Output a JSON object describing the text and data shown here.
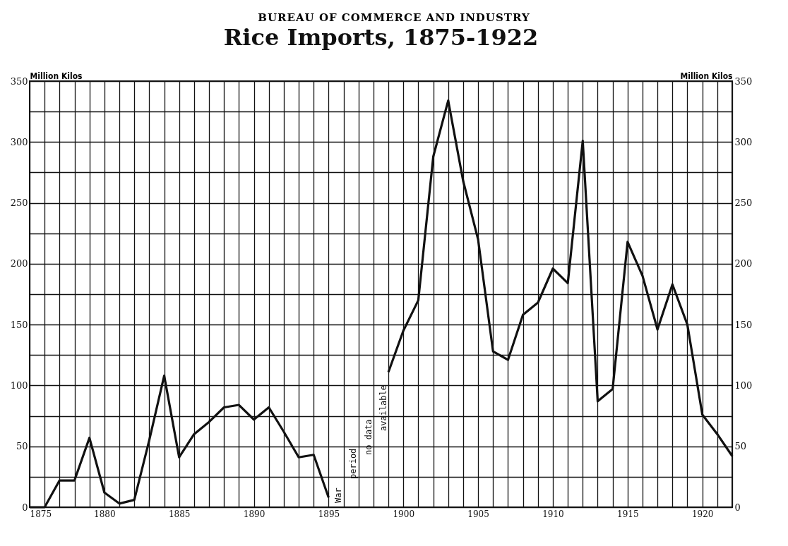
{
  "chart_data": {
    "type": "line",
    "title": "Rice Imports, 1875-1922",
    "subtitle": "BUREAU OF COMMERCE AND INDUSTRY",
    "ylabel": "Million Kilos",
    "y2label": "Million Kilos",
    "x": [
      1875,
      1876,
      1877,
      1878,
      1879,
      1880,
      1881,
      1882,
      1883,
      1884,
      1885,
      1886,
      1887,
      1888,
      1889,
      1890,
      1891,
      1892,
      1893,
      1894,
      1895,
      1896,
      1897,
      1898,
      1899,
      1900,
      1901,
      1902,
      1903,
      1904,
      1905,
      1906,
      1907,
      1908,
      1909,
      1910,
      1911,
      1912,
      1913,
      1914,
      1915,
      1916,
      1917,
      1918,
      1919,
      1920,
      1921,
      1922
    ],
    "series": [
      {
        "color": "#111111",
        "values": [
          0,
          0,
          22,
          22,
          57,
          12,
          3,
          6,
          55,
          108,
          41,
          60,
          70,
          82,
          84,
          72,
          82,
          62,
          41,
          43,
          8,
          null,
          null,
          null,
          111,
          145,
          170,
          288,
          334,
          268,
          220,
          128,
          121,
          158,
          168,
          196,
          184,
          301,
          87,
          97,
          218,
          190,
          146,
          183,
          150,
          76,
          60,
          42
        ]
      }
    ],
    "xlim": [
      1875,
      1922
    ],
    "xticks": [
      1875,
      {
        "value": 1876,
        "label": null
      },
      {
        "value": 1877,
        "label": null
      },
      {
        "value": 1878,
        "label": null
      },
      {
        "value": 1879,
        "label": null
      },
      1880,
      {
        "value": 1881,
        "label": null
      },
      {
        "value": 1882,
        "label": null
      },
      {
        "value": 1883,
        "label": null
      },
      {
        "value": 1884,
        "label": null
      },
      1885,
      {
        "value": 1886,
        "label": null
      },
      {
        "value": 1887,
        "label": null
      },
      {
        "value": 1888,
        "label": null
      },
      {
        "value": 1889,
        "label": null
      },
      1890,
      {
        "value": 1891,
        "label": null
      },
      {
        "value": 1892,
        "label": null
      },
      {
        "value": 1893,
        "label": null
      },
      {
        "value": 1894,
        "label": null
      },
      1895,
      {
        "value": 1896,
        "label": null
      },
      {
        "value": 1897,
        "label": null
      },
      {
        "value": 1898,
        "label": null
      },
      {
        "value": 1899,
        "label": null
      },
      1900,
      {
        "value": 1901,
        "label": null
      },
      {
        "value": 1902,
        "label": null
      },
      {
        "value": 1903,
        "label": null
      },
      {
        "value": 1904,
        "label": null
      },
      1905,
      {
        "value": 1906,
        "label": null
      },
      {
        "value": 1907,
        "label": null
      },
      {
        "value": 1908,
        "label": null
      },
      {
        "value": 1909,
        "label": null
      },
      1910,
      {
        "value": 1911,
        "label": null
      },
      {
        "value": 1912,
        "label": null
      },
      {
        "value": 1913,
        "label": null
      },
      {
        "value": 1914,
        "label": null
      },
      1915,
      {
        "value": 1916,
        "label": null
      },
      {
        "value": 1917,
        "label": null
      },
      {
        "value": 1918,
        "label": null
      },
      {
        "value": 1919,
        "label": null
      },
      1920,
      {
        "value": 1921,
        "label": null
      },
      {
        "value": 1922,
        "label": null
      }
    ],
    "ylim": [
      0,
      350
    ],
    "yticks": [
      0,
      {
        "value": 25,
        "label": null
      },
      50,
      {
        "value": 75,
        "label": null
      },
      100,
      {
        "value": 125,
        "label": null
      },
      150,
      {
        "value": 175,
        "label": null
      },
      200,
      {
        "value": 225,
        "label": null
      },
      250,
      {
        "value": 275,
        "label": null
      },
      300,
      {
        "value": 325,
        "label": null
      },
      350
    ],
    "y2lim": [
      0,
      350
    ],
    "y2ticks": [
      0,
      50,
      100,
      150,
      200,
      250,
      300,
      350
    ],
    "annotations": [
      "War",
      "period",
      "no data",
      "available"
    ],
    "grid": true,
    "marker": "none",
    "line_style": "solid"
  }
}
